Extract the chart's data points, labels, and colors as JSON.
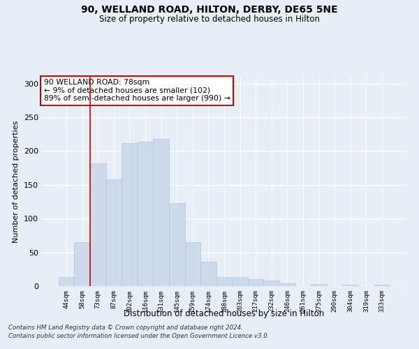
{
  "title1": "90, WELLAND ROAD, HILTON, DERBY, DE65 5NE",
  "title2": "Size of property relative to detached houses in Hilton",
  "xlabel": "Distribution of detached houses by size in Hilton",
  "ylabel": "Number of detached properties",
  "bar_labels": [
    "44sqm",
    "58sqm",
    "73sqm",
    "87sqm",
    "102sqm",
    "116sqm",
    "131sqm",
    "145sqm",
    "159sqm",
    "174sqm",
    "188sqm",
    "203sqm",
    "217sqm",
    "232sqm",
    "246sqm",
    "261sqm",
    "275sqm",
    "290sqm",
    "304sqm",
    "319sqm",
    "333sqm"
  ],
  "bar_values": [
    13,
    65,
    182,
    158,
    212,
    214,
    218,
    123,
    65,
    36,
    13,
    13,
    10,
    8,
    4,
    0,
    3,
    0,
    2,
    0,
    2
  ],
  "bar_color": "#ccdaeb",
  "bar_edge_color": "#b0c4d8",
  "vline_color": "#cc0000",
  "annotation_text": "90 WELLAND ROAD: 78sqm\n← 9% of detached houses are smaller (102)\n89% of semi-detached houses are larger (990) →",
  "annotation_box_color": "white",
  "annotation_box_edge": "#cc0000",
  "ylim": [
    0,
    310
  ],
  "yticks": [
    0,
    50,
    100,
    150,
    200,
    250,
    300
  ],
  "footer1": "Contains HM Land Registry data © Crown copyright and database right 2024.",
  "footer2": "Contains public sector information licensed under the Open Government Licence v3.0.",
  "bg_color": "#e8eef5",
  "grid_color": "white"
}
